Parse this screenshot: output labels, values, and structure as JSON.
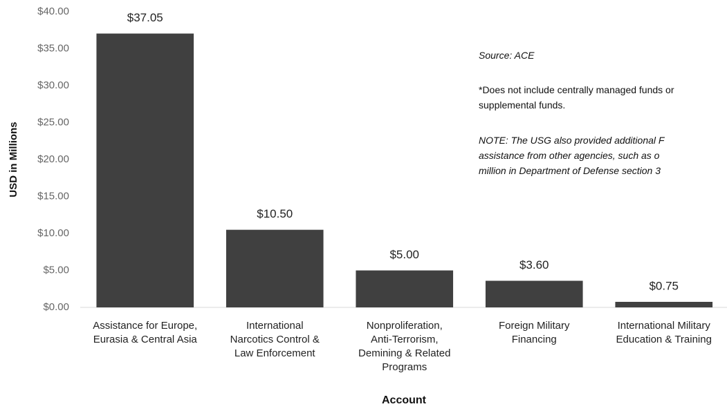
{
  "chart_data": {
    "type": "bar",
    "categories": [
      "Assistance for Europe,\nEurasia & Central Asia",
      "International\nNarcotics Control &\nLaw Enforcement",
      "Nonproliferation,\nAnti-Terrorism,\nDemining & Related\nPrograms",
      "Foreign Military\nFinancing",
      "International Military\nEducation & Training"
    ],
    "values": [
      37.05,
      10.5,
      5.0,
      3.6,
      0.75
    ],
    "value_labels": [
      "$37.05",
      "$10.50",
      "$5.00",
      "$3.60",
      "$0.75"
    ],
    "color": "#404040",
    "ylabel": "USD in Millions",
    "xlabel": "Account",
    "ylim": [
      0,
      40
    ],
    "yticks": [
      {
        "value": 0,
        "label": "$0.00"
      },
      {
        "value": 5,
        "label": "$5.00"
      },
      {
        "value": 10,
        "label": "$10.00"
      },
      {
        "value": 15,
        "label": "$15.00"
      },
      {
        "value": 20,
        "label": "$20.00"
      },
      {
        "value": 25,
        "label": "$25.00"
      },
      {
        "value": 30,
        "label": "$30.00"
      },
      {
        "value": 35,
        "label": "$35.00"
      },
      {
        "value": 40,
        "label": "$40.00"
      }
    ],
    "annotations": [
      "Source: ACE",
      "*Does not include centrally managed funds or\nsupplemental funds.",
      "NOTE: The USG also provided additional F\nassistance  from other agencies, such as o\nmillion in Department of Defense section 3"
    ]
  }
}
